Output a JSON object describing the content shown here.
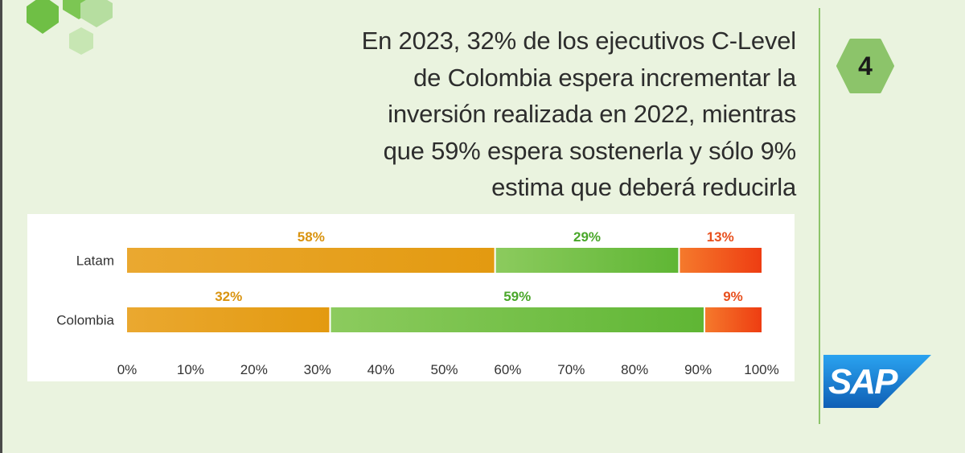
{
  "headline": {
    "lines": [
      "En 2023, 32% de los ejecutivos C-Level",
      "de Colombia espera incrementar la",
      "inversión realizada en 2022, mientras",
      "que 59% espera sostenerla y sólo 9%",
      "estima que deberá reducirla"
    ]
  },
  "badge": {
    "number": "4"
  },
  "logo": {
    "text": "SAP"
  },
  "colors": {
    "background": "#eaf3df",
    "accent_green": "#8cc46a",
    "sap_blue": "#1f7fd1",
    "orange": "#e89b1a",
    "green": "#6bbf3f",
    "red": "#f04a1b"
  },
  "chart_data": {
    "type": "bar",
    "orientation": "horizontal",
    "stacked": true,
    "categories": [
      "Latam",
      "Colombia"
    ],
    "series": [
      {
        "values": [
          58,
          32
        ],
        "labels": [
          "58%",
          "32%"
        ],
        "color": "#e89b1a",
        "label_color": "#d9930f"
      },
      {
        "values": [
          29,
          59
        ],
        "labels": [
          "29%",
          "59%"
        ],
        "color": "#6bbf3f",
        "label_color": "#4aa72a"
      },
      {
        "values": [
          13,
          9
        ],
        "labels": [
          "13%",
          "9%"
        ],
        "color": "#f04a1b",
        "label_color": "#e8501e"
      }
    ],
    "xlim": [
      0,
      100
    ],
    "xticks": [
      "0%",
      "10%",
      "20%",
      "30%",
      "40%",
      "50%",
      "60%",
      "70%",
      "80%",
      "90%",
      "100%"
    ],
    "grid": false,
    "legend": "none"
  }
}
